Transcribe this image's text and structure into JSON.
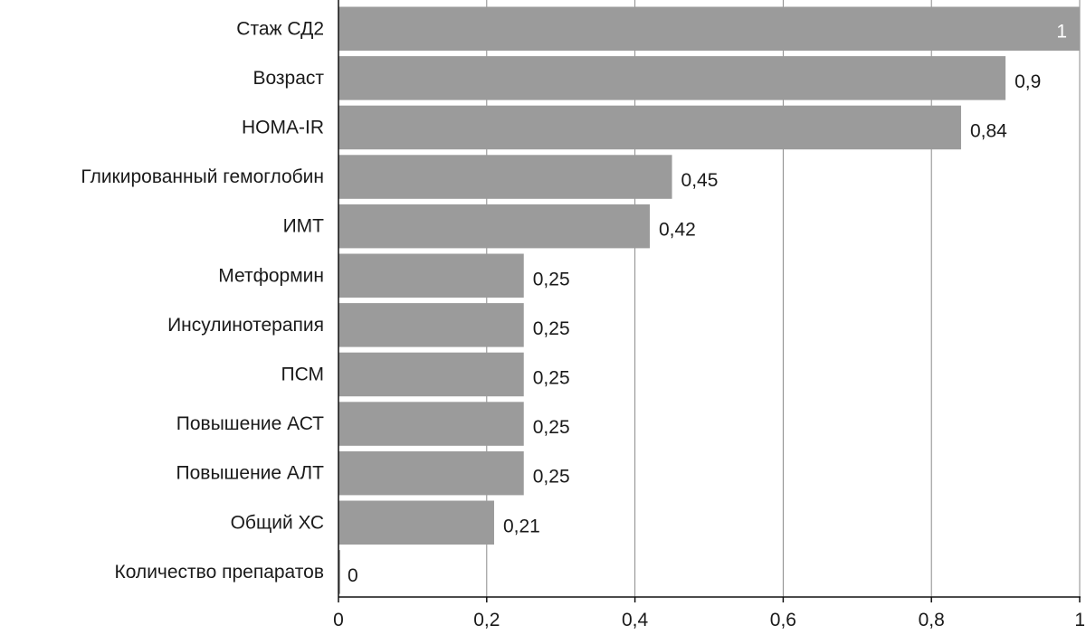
{
  "chart_data": {
    "type": "bar",
    "orientation": "horizontal",
    "categories": [
      "Стаж СД2",
      "Возраст",
      "HOMA-IR",
      "Гликированный гемоглобин",
      "ИМТ",
      "Метформин",
      "Инсулинотерапия",
      "ПСМ",
      "Повышение АСТ",
      "Повышение АЛТ",
      "Общий ХС",
      "Количество препаратов"
    ],
    "values": [
      1,
      0.9,
      0.84,
      0.45,
      0.42,
      0.25,
      0.25,
      0.25,
      0.25,
      0.25,
      0.21,
      0
    ],
    "value_labels": [
      "1",
      "0,9",
      "0,84",
      "0,45",
      "0,42",
      "0,25",
      "0,25",
      "0,25",
      "0,25",
      "0,25",
      "0,21",
      "0"
    ],
    "xlim": [
      0,
      1
    ],
    "x_ticks": [
      0,
      0.2,
      0.4,
      0.6,
      0.8,
      1
    ],
    "x_tick_labels": [
      "0",
      "0,2",
      "0,4",
      "0,6",
      "0,8",
      "1"
    ],
    "grid": "vertical",
    "bar_color": "#9b9b9b",
    "grid_color": "#8a8a8a",
    "axis_color": "#111111"
  }
}
